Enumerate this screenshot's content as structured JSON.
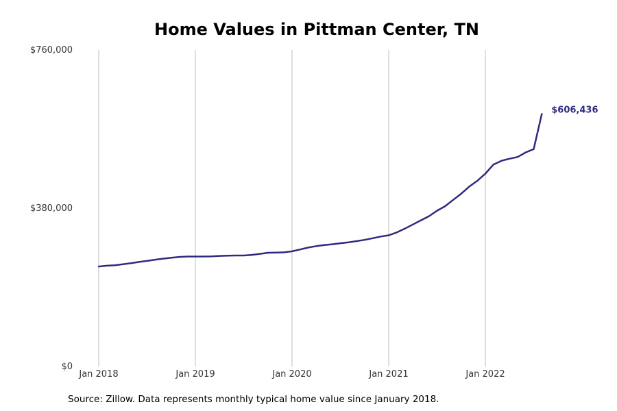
{
  "chart_data": {
    "type": "line",
    "title": "Home Values in Pittman Center, TN",
    "xlabel": "",
    "ylabel": "",
    "ylim": [
      0,
      760000
    ],
    "y_ticks": [
      {
        "value": 0,
        "label": "$0"
      },
      {
        "value": 380000,
        "label": "$380,000"
      },
      {
        "value": 760000,
        "label": "$760,000"
      }
    ],
    "x_ticks": [
      {
        "value": "2018-01",
        "label": "Jan 2018"
      },
      {
        "value": "2019-01",
        "label": "Jan 2019"
      },
      {
        "value": "2020-01",
        "label": "Jan 2020"
      },
      {
        "value": "2021-01",
        "label": "Jan 2021"
      },
      {
        "value": "2022-01",
        "label": "Jan 2022"
      }
    ],
    "grid": "vertical",
    "line_color": "#2e2a7d",
    "end_label": "$606,436",
    "series": [
      {
        "x": [
          "2018-01",
          "2018-02",
          "2018-03",
          "2018-04",
          "2018-05",
          "2018-06",
          "2018-07",
          "2018-08",
          "2018-09",
          "2018-10",
          "2018-11",
          "2018-12",
          "2019-01",
          "2019-02",
          "2019-03",
          "2019-04",
          "2019-05",
          "2019-06",
          "2019-07",
          "2019-08",
          "2019-09",
          "2019-10",
          "2019-11",
          "2019-12",
          "2020-01",
          "2020-02",
          "2020-03",
          "2020-04",
          "2020-05",
          "2020-06",
          "2020-07",
          "2020-08",
          "2020-09",
          "2020-10",
          "2020-11",
          "2020-12",
          "2021-01",
          "2021-02",
          "2021-03",
          "2021-04",
          "2021-05",
          "2021-06",
          "2021-07",
          "2021-08",
          "2021-09",
          "2021-10",
          "2021-11",
          "2021-12",
          "2022-01",
          "2022-02",
          "2022-03",
          "2022-04",
          "2022-05",
          "2022-06",
          "2022-07",
          "2022-08"
        ],
        "values": [
          240000,
          242000,
          243000,
          245500,
          248000,
          251000,
          253500,
          256500,
          259000,
          261000,
          263000,
          264000,
          264000,
          264000,
          264500,
          265500,
          266000,
          266500,
          266500,
          268000,
          270500,
          273000,
          273500,
          274000,
          276500,
          281000,
          285500,
          289000,
          291500,
          293500,
          296000,
          298000,
          301000,
          304000,
          308000,
          312000,
          315000,
          322000,
          331000,
          341000,
          351000,
          361000,
          374000,
          385000,
          400000,
          415000,
          432000,
          446000,
          463000,
          485000,
          494000,
          499000,
          503000,
          514000,
          522000,
          606436
        ]
      }
    ]
  },
  "source_note": "Source: Zillow. Data represents monthly typical home value since January 2018."
}
